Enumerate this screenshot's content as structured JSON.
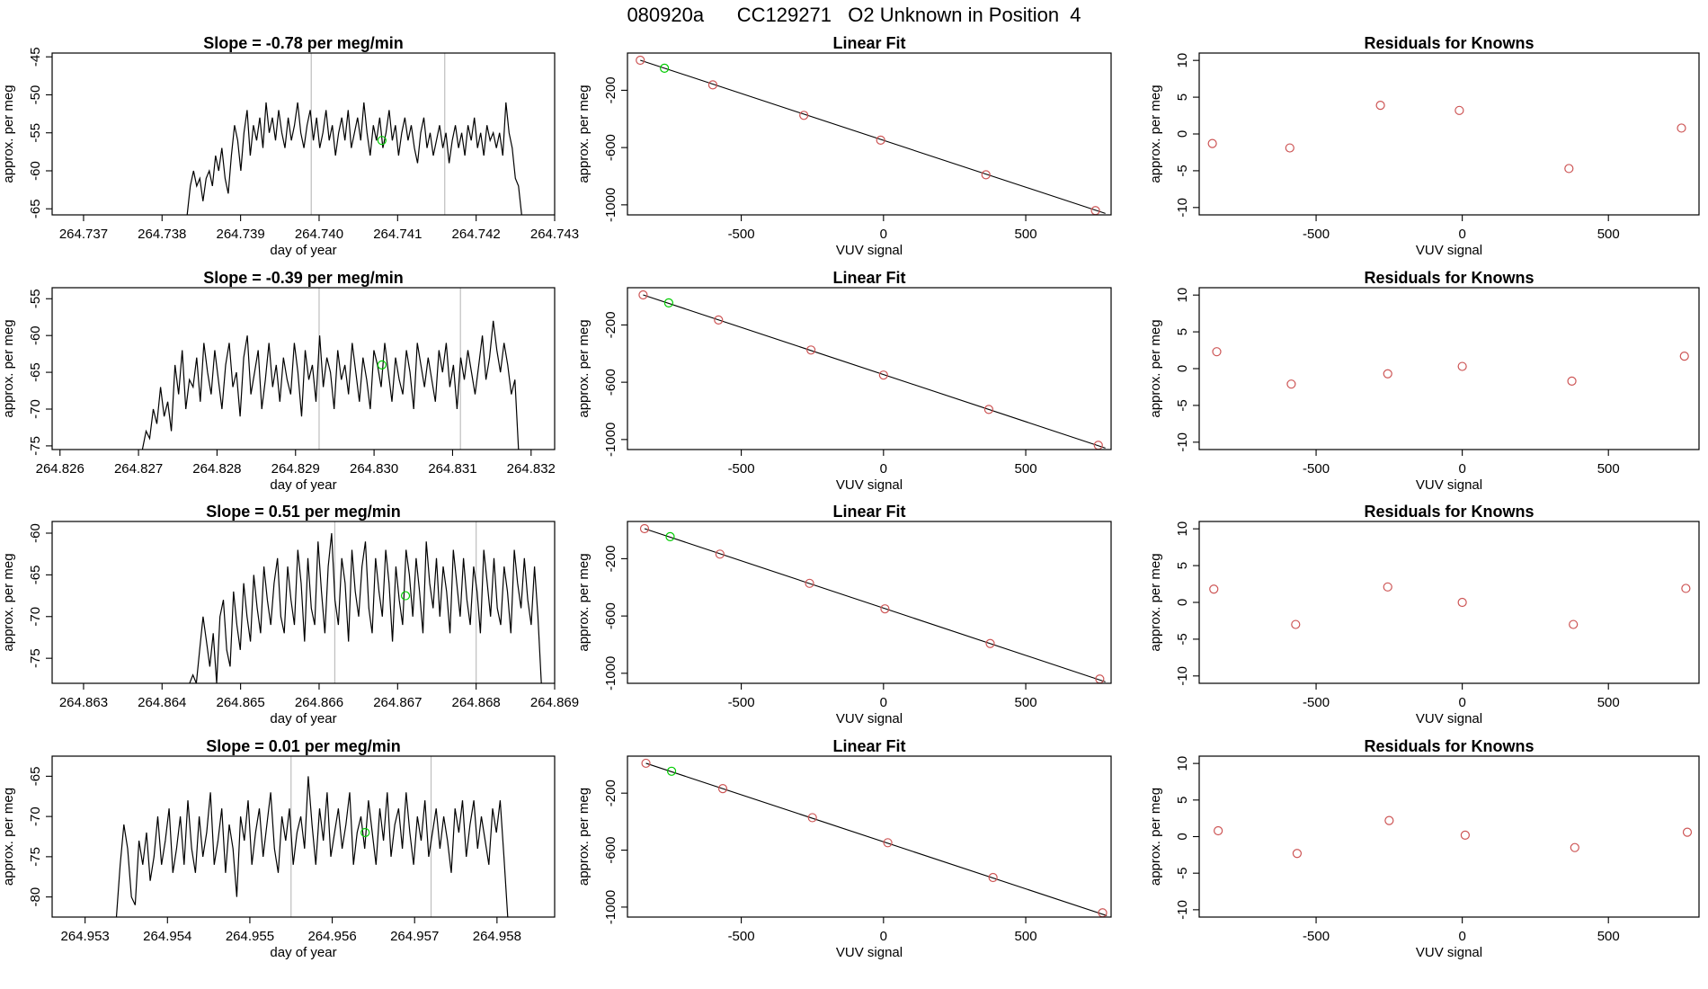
{
  "main_title": "080920a      CC129271   O2 Unknown in Position  4",
  "colors": {
    "trace": "#000000",
    "known_point": "#cd5555",
    "unknown_point": "#00cc00",
    "vline": "#bebebe"
  },
  "chart_data": [
    {
      "type": "line",
      "panel": "row1-time-series",
      "title": "Slope =  -0.78  per meg/min",
      "xlabel": "day of year",
      "ylabel": "approx. per meg",
      "xlim": [
        264.7366,
        264.743
      ],
      "ylim": [
        -65.8,
        -44.5
      ],
      "x_ticks": [
        "264.737",
        "264.738",
        "264.739",
        "264.740",
        "264.741",
        "264.742",
        "264.743"
      ],
      "y_ticks": [
        -65,
        -60,
        -55,
        -50,
        -45
      ],
      "vlines": [
        264.7399,
        264.7416
      ],
      "trace_start": 264.73832,
      "trace_end": 264.74258,
      "y": [
        -66,
        -62,
        -60,
        -62,
        -61,
        -64,
        -61,
        -60,
        -62,
        -58,
        -60,
        -57,
        -61,
        -63,
        -58,
        -54,
        -56,
        -60,
        -55,
        -52,
        -58,
        -54,
        -56,
        -53,
        -57,
        -51,
        -55,
        -53,
        -56,
        -52,
        -55,
        -57,
        -53,
        -56,
        -54,
        -51,
        -55,
        -57,
        -54,
        -52,
        -56,
        -53,
        -57,
        -55,
        -52,
        -56,
        -54,
        -58,
        -55,
        -53,
        -56,
        -52,
        -57,
        -55,
        -53,
        -56,
        -51,
        -55,
        -58,
        -54,
        -56,
        -53,
        -57,
        -55,
        -52,
        -56,
        -54,
        -58,
        -55,
        -53,
        -56,
        -54,
        -57,
        -59,
        -55,
        -53,
        -57,
        -55,
        -58,
        -56,
        -54,
        -57,
        -55,
        -59,
        -56,
        -54,
        -57,
        -55,
        -58,
        -54,
        -56,
        -53,
        -57,
        -55,
        -58,
        -54,
        -56,
        -55,
        -57,
        -55,
        -58,
        -51,
        -55,
        -57,
        -61,
        -62,
        -66
      ],
      "green_point": {
        "x": 264.7408,
        "y": -56
      }
    },
    {
      "type": "scatter",
      "panel": "row1-linear-fit",
      "title": "Linear Fit",
      "xlabel": "VUV signal",
      "ylabel": "approx. per meg",
      "xlim": [
        -900,
        800
      ],
      "ylim": [
        -1070,
        60
      ],
      "x_ticks": [
        -500,
        0,
        500
      ],
      "y_ticks": [
        -200,
        -600,
        -1000
      ],
      "fit_line": {
        "x": [
          -855,
          780
        ],
        "y": [
          10,
          -1060
        ]
      },
      "known": [
        {
          "x": -855,
          "y": 10
        },
        {
          "x": -600,
          "y": -162
        },
        {
          "x": -280,
          "y": -375
        },
        {
          "x": -10,
          "y": -548
        },
        {
          "x": 360,
          "y": -790
        },
        {
          "x": 745,
          "y": -1040
        }
      ],
      "unknown": [
        {
          "x": -770,
          "y": -46
        }
      ]
    },
    {
      "type": "scatter",
      "panel": "row1-residuals",
      "title": "Residuals for Knowns",
      "xlabel": "VUV signal",
      "ylabel": "approx. per meg",
      "xlim": [
        -900,
        810
      ],
      "ylim": [
        -11,
        11
      ],
      "x_ticks": [
        -500,
        0,
        500
      ],
      "y_ticks": [
        10,
        5,
        0,
        -5,
        -10
      ],
      "points": [
        {
          "x": -855,
          "y": -1.3
        },
        {
          "x": -590,
          "y": -1.9
        },
        {
          "x": -280,
          "y": 3.9
        },
        {
          "x": -10,
          "y": 3.2
        },
        {
          "x": 365,
          "y": -4.7
        },
        {
          "x": 750,
          "y": 0.8
        }
      ]
    },
    {
      "type": "line",
      "panel": "row2-time-series",
      "title": "Slope =  -0.39  per meg/min",
      "xlabel": "day of year",
      "ylabel": "approx. per meg",
      "xlim": [
        264.8259,
        264.8323
      ],
      "ylim": [
        -75.5,
        -53.5
      ],
      "x_ticks": [
        "264.826",
        "264.827",
        "264.828",
        "264.829",
        "264.830",
        "264.831",
        "264.832"
      ],
      "y_ticks": [
        -75,
        -70,
        -65,
        -60,
        -55
      ],
      "vlines": [
        264.8293,
        264.8311
      ],
      "trace_start": 264.82705,
      "trace_end": 264.83184,
      "y": [
        -76,
        -73,
        -74,
        -70,
        -72,
        -67,
        -71,
        -69,
        -73,
        -64,
        -68,
        -62,
        -70,
        -66,
        -67,
        -63,
        -69,
        -61,
        -65,
        -68,
        -62,
        -66,
        -70,
        -64,
        -61,
        -67,
        -65,
        -71,
        -63,
        -60,
        -68,
        -65,
        -62,
        -70,
        -66,
        -61,
        -67,
        -64,
        -69,
        -63,
        -66,
        -68,
        -61,
        -65,
        -71,
        -62,
        -66,
        -64,
        -69,
        -60,
        -67,
        -63,
        -65,
        -70,
        -62,
        -66,
        -64,
        -68,
        -61,
        -65,
        -69,
        -63,
        -66,
        -70,
        -62,
        -64,
        -67,
        -61,
        -65,
        -69,
        -63,
        -66,
        -68,
        -62,
        -65,
        -70,
        -61,
        -64,
        -67,
        -63,
        -66,
        -69,
        -62,
        -65,
        -61,
        -67,
        -64,
        -70,
        -63,
        -66,
        -62,
        -65,
        -68,
        -64,
        -60,
        -66,
        -63,
        -58,
        -62,
        -65,
        -61,
        -64,
        -68,
        -66,
        -76
      ],
      "green_point": {
        "x": 264.8301,
        "y": -64
      }
    },
    {
      "type": "scatter",
      "panel": "row2-linear-fit",
      "title": "Linear Fit",
      "xlabel": "VUV signal",
      "ylabel": "approx. per meg",
      "xlim": [
        -900,
        800
      ],
      "ylim": [
        -1070,
        60
      ],
      "x_ticks": [
        -500,
        0,
        500
      ],
      "y_ticks": [
        -200,
        -600,
        -1000
      ],
      "fit_line": {
        "x": [
          -845,
          780
        ],
        "y": [
          10,
          -1060
        ]
      },
      "known": [
        {
          "x": -845,
          "y": 10
        },
        {
          "x": -580,
          "y": -165
        },
        {
          "x": -255,
          "y": -375
        },
        {
          "x": 0,
          "y": -550
        },
        {
          "x": 370,
          "y": -790
        },
        {
          "x": 755,
          "y": -1040
        }
      ],
      "unknown": [
        {
          "x": -755,
          "y": -46
        }
      ]
    },
    {
      "type": "scatter",
      "panel": "row2-residuals",
      "title": "Residuals for Knowns",
      "xlabel": "VUV signal",
      "ylabel": "approx. per meg",
      "xlim": [
        -900,
        810
      ],
      "ylim": [
        -11,
        11
      ],
      "x_ticks": [
        -500,
        0,
        500
      ],
      "y_ticks": [
        10,
        5,
        0,
        -5,
        -10
      ],
      "points": [
        {
          "x": -840,
          "y": 2.3
        },
        {
          "x": -585,
          "y": -2.1
        },
        {
          "x": -255,
          "y": -0.7
        },
        {
          "x": 0,
          "y": 0.3
        },
        {
          "x": 375,
          "y": -1.7
        },
        {
          "x": 760,
          "y": 1.7
        }
      ]
    },
    {
      "type": "line",
      "panel": "row3-time-series",
      "title": "Slope =  0.51  per meg/min",
      "xlabel": "day of year",
      "ylabel": "approx. per meg",
      "xlim": [
        264.8626,
        264.869
      ],
      "ylim": [
        -78,
        -58.6
      ],
      "x_ticks": [
        "264.863",
        "264.864",
        "264.865",
        "264.866",
        "264.867",
        "264.868",
        "264.869"
      ],
      "y_ticks": [
        -75,
        -70,
        -65,
        -60
      ],
      "vlines": [
        264.8662,
        264.868
      ],
      "trace_start": 264.86435,
      "trace_end": 264.86883,
      "y": [
        -78,
        -77,
        -78,
        -74,
        -70,
        -73,
        -76,
        -72,
        -78,
        -70,
        -68,
        -74,
        -76,
        -67,
        -71,
        -74,
        -66,
        -70,
        -73,
        -65,
        -69,
        -72,
        -64,
        -68,
        -71,
        -66,
        -63,
        -70,
        -72,
        -64,
        -68,
        -71,
        -62,
        -66,
        -73,
        -63,
        -69,
        -71,
        -61,
        -67,
        -72,
        -64,
        -60,
        -68,
        -71,
        -63,
        -66,
        -73,
        -62,
        -67,
        -70,
        -64,
        -61,
        -69,
        -72,
        -63,
        -67,
        -70,
        -62,
        -66,
        -73,
        -64,
        -68,
        -71,
        -62,
        -65,
        -70,
        -63,
        -67,
        -72,
        -61,
        -66,
        -69,
        -63,
        -70,
        -64,
        -67,
        -72,
        -62,
        -66,
        -70,
        -63,
        -68,
        -71,
        -64,
        -67,
        -72,
        -62,
        -66,
        -70,
        -63,
        -69,
        -71,
        -64,
        -67,
        -72,
        -62,
        -66,
        -69,
        -63,
        -68,
        -71,
        -64,
        -70,
        -78
      ],
      "green_point": {
        "x": 264.8671,
        "y": -67.5
      }
    },
    {
      "type": "scatter",
      "panel": "row3-linear-fit",
      "title": "Linear Fit",
      "xlabel": "VUV signal",
      "ylabel": "approx. per meg",
      "xlim": [
        -900,
        800
      ],
      "ylim": [
        -1070,
        60
      ],
      "x_ticks": [
        -500,
        0,
        500
      ],
      "y_ticks": [
        -200,
        -600,
        -1000
      ],
      "fit_line": {
        "x": [
          -840,
          780
        ],
        "y": [
          10,
          -1060
        ]
      },
      "known": [
        {
          "x": -840,
          "y": 10
        },
        {
          "x": -575,
          "y": -168
        },
        {
          "x": -260,
          "y": -372
        },
        {
          "x": 5,
          "y": -550
        },
        {
          "x": 375,
          "y": -792
        },
        {
          "x": 760,
          "y": -1040
        }
      ],
      "unknown": [
        {
          "x": -750,
          "y": -46
        }
      ]
    },
    {
      "type": "scatter",
      "panel": "row3-residuals",
      "title": "Residuals for Knowns",
      "xlabel": "VUV signal",
      "ylabel": "approx. per meg",
      "xlim": [
        -900,
        810
      ],
      "ylim": [
        -11,
        11
      ],
      "x_ticks": [
        -500,
        0,
        500
      ],
      "y_ticks": [
        10,
        5,
        0,
        -5,
        -10
      ],
      "points": [
        {
          "x": -850,
          "y": 1.8
        },
        {
          "x": -570,
          "y": -3
        },
        {
          "x": -255,
          "y": 2.1
        },
        {
          "x": 0,
          "y": 0
        },
        {
          "x": 380,
          "y": -3
        },
        {
          "x": 765,
          "y": 1.9
        }
      ]
    },
    {
      "type": "line",
      "panel": "row4-time-series",
      "title": "Slope =  0.01  per meg/min",
      "xlabel": "day of year",
      "ylabel": "approx. per meg",
      "xlim": [
        264.9526,
        264.9587
      ],
      "ylim": [
        -82.5,
        -62.5
      ],
      "x_ticks": [
        "264.953",
        "264.954",
        "264.955",
        "264.956",
        "264.957",
        "264.958"
      ],
      "y_ticks": [
        -80,
        -75,
        -70,
        -65
      ],
      "vlines": [
        264.9555,
        264.9572
      ],
      "trace_start": 264.95338,
      "trace_end": 264.95813,
      "y": [
        -83,
        -76,
        -71,
        -74,
        -80,
        -81,
        -73,
        -76,
        -72,
        -78,
        -75,
        -70,
        -76,
        -73,
        -69,
        -77,
        -74,
        -70,
        -76,
        -68,
        -74,
        -77,
        -70,
        -75,
        -72,
        -67,
        -76,
        -73,
        -69,
        -77,
        -71,
        -74,
        -80,
        -70,
        -73,
        -68,
        -76,
        -72,
        -69,
        -75,
        -71,
        -67,
        -74,
        -77,
        -70,
        -73,
        -69,
        -76,
        -72,
        -70,
        -74,
        -65,
        -71,
        -76,
        -69,
        -73,
        -67,
        -75,
        -72,
        -69,
        -74,
        -71,
        -67,
        -76,
        -72,
        -70,
        -74,
        -68,
        -72,
        -76,
        -69,
        -73,
        -67,
        -75,
        -71,
        -69,
        -74,
        -67,
        -72,
        -76,
        -70,
        -73,
        -68,
        -75,
        -72,
        -69,
        -74,
        -70,
        -73,
        -77,
        -69,
        -72,
        -68,
        -75,
        -71,
        -68,
        -74,
        -70,
        -73,
        -76,
        -69,
        -72,
        -68,
        -75,
        -83
      ],
      "green_point": {
        "x": 264.9564,
        "y": -72
      }
    },
    {
      "type": "scatter",
      "panel": "row4-linear-fit",
      "title": "Linear Fit",
      "xlabel": "VUV signal",
      "ylabel": "approx. per meg",
      "xlim": [
        -900,
        800
      ],
      "ylim": [
        -1070,
        60
      ],
      "x_ticks": [
        -500,
        0,
        500
      ],
      "y_ticks": [
        -200,
        -600,
        -1000
      ],
      "fit_line": {
        "x": [
          -835,
          785
        ],
        "y": [
          10,
          -1060
        ]
      },
      "known": [
        {
          "x": -835,
          "y": 10
        },
        {
          "x": -565,
          "y": -168
        },
        {
          "x": -250,
          "y": -372
        },
        {
          "x": 15,
          "y": -548
        },
        {
          "x": 385,
          "y": -792
        },
        {
          "x": 770,
          "y": -1040
        }
      ],
      "unknown": [
        {
          "x": -745,
          "y": -46
        }
      ]
    },
    {
      "type": "scatter",
      "panel": "row4-residuals",
      "title": "Residuals for Knowns",
      "xlabel": "VUV signal",
      "ylabel": "approx. per meg",
      "xlim": [
        -900,
        810
      ],
      "ylim": [
        -11,
        11
      ],
      "x_ticks": [
        -500,
        0,
        500
      ],
      "y_ticks": [
        10,
        5,
        0,
        -5,
        -10
      ],
      "points": [
        {
          "x": -835,
          "y": 0.8
        },
        {
          "x": -565,
          "y": -2.3
        },
        {
          "x": -250,
          "y": 2.2
        },
        {
          "x": 10,
          "y": 0.2
        },
        {
          "x": 385,
          "y": -1.5
        },
        {
          "x": 770,
          "y": 0.6
        }
      ]
    }
  ]
}
